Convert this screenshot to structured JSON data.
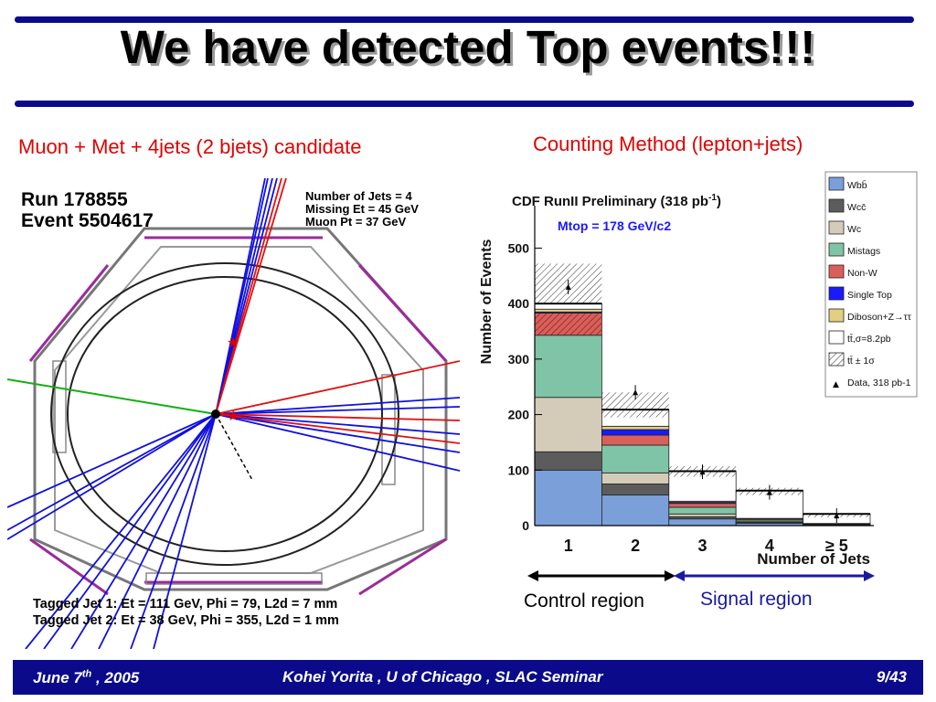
{
  "slide": {
    "title": "We have detected Top events!!!",
    "left_caption": "Muon + Met + 4jets (2 bjets) candidate",
    "right_caption": "Counting Method (lepton+jets)",
    "control_region": "Control region",
    "signal_region": "Signal region"
  },
  "event_display": {
    "run": "Run 178855",
    "event": "Event 5504617",
    "njets": "Number of Jets = 4",
    "met": "Missing Et = 45 GeV",
    "muon": "Muon Pt = 37 GeV",
    "tag1": "Tagged Jet 1: Et = 111 GeV, Phi = 79,   L2d = 7 mm",
    "tag2": "Tagged Jet 2: Et = 38 GeV,    Phi = 355, L2d = 1 mm"
  },
  "footer": {
    "date": "June 7th , 2005",
    "author": "Kohei Yorita , U of Chicago , SLAC Seminar",
    "page": "9/43"
  },
  "chart_data": {
    "type": "bar",
    "stacked": true,
    "title": "CDF RunII Preliminary (318 pb-1)",
    "annotation": "Mtop = 178 GeV/c2",
    "xlabel": "Number of Jets",
    "ylabel": "Number of Events",
    "categories": [
      "1",
      "2",
      "3",
      "4",
      "≥ 5"
    ],
    "ylim": [
      0,
      560
    ],
    "yticks": [
      0,
      100,
      200,
      300,
      400,
      500
    ],
    "series": [
      {
        "name": "Wbb̄",
        "color": "#7b9fd9",
        "values": [
          100,
          55,
          12,
          4,
          1
        ]
      },
      {
        "name": "Wcc̄",
        "color": "#5c5c5c",
        "values": [
          33,
          20,
          4,
          1.5,
          0.5
        ]
      },
      {
        "name": "Wc",
        "color": "#d4ccb8",
        "values": [
          98,
          20,
          5,
          1.5,
          0.5
        ]
      },
      {
        "name": "Mistags",
        "color": "#7fc4a6",
        "values": [
          112,
          50,
          12,
          3,
          1
        ]
      },
      {
        "name": "Non-W",
        "color": "#d9605a",
        "values": [
          40,
          18,
          7,
          2,
          0.5
        ]
      },
      {
        "name": "Single Top",
        "color": "#1a1aff",
        "values": [
          2,
          10,
          2,
          0.5,
          0.2
        ]
      },
      {
        "name": "Diboson+Z→ττ",
        "color": "#e3cf82",
        "values": [
          5,
          6,
          2,
          0.5,
          0.2
        ]
      },
      {
        "name": "tt̄,σ=8.2pb",
        "color": "#ffffff",
        "values": [
          10,
          30,
          54,
          50,
          17
        ]
      }
    ],
    "uncertainty_label": "tt̄ ± 1σ",
    "uncertainty": [
      [
        400,
        472
      ],
      [
        195,
        240
      ],
      [
        88,
        107
      ],
      [
        55,
        68
      ],
      [
        15,
        22
      ]
    ],
    "data": {
      "name": "Data, 318 pb-1",
      "values": [
        430,
        240,
        97,
        60,
        18
      ]
    }
  }
}
